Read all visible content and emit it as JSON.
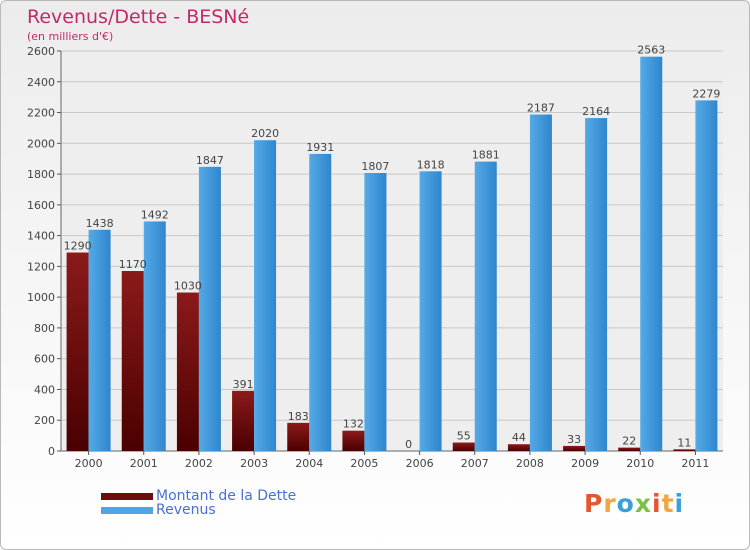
{
  "title": "Revenus/Dette - BESNé",
  "subtitle": "(en milliers d'€)",
  "logo": "Proxiti",
  "colors": {
    "debt": "#8b1a1a",
    "debt_dark": "#4a0000",
    "revenue": "#55a9e6",
    "revenue_dark": "#2f86cc",
    "title": "#c02a68",
    "legend_text": "#4a6fd6"
  },
  "legend": [
    {
      "label": "Montant de la Dette",
      "color": "#6e0d0d"
    },
    {
      "label": "Revenus",
      "color": "#4ea6e8"
    }
  ],
  "chart_data": {
    "type": "bar",
    "categories": [
      "2000",
      "2001",
      "2002",
      "2003",
      "2004",
      "2005",
      "2006",
      "2007",
      "2008",
      "2009",
      "2010",
      "2011"
    ],
    "series": [
      {
        "name": "Montant de la Dette",
        "values": [
          1290,
          1170,
          1030,
          391,
          183,
          132,
          0,
          55,
          44,
          33,
          22,
          11
        ]
      },
      {
        "name": "Revenus",
        "values": [
          1438,
          1492,
          1847,
          2020,
          1931,
          1807,
          1818,
          1881,
          2187,
          2164,
          2563,
          2279
        ]
      }
    ],
    "yticks": [
      0,
      200,
      400,
      600,
      800,
      1000,
      1200,
      1400,
      1600,
      1800,
      2000,
      2200,
      2400,
      2600
    ],
    "ylim": [
      0,
      2600
    ],
    "grid": true
  }
}
